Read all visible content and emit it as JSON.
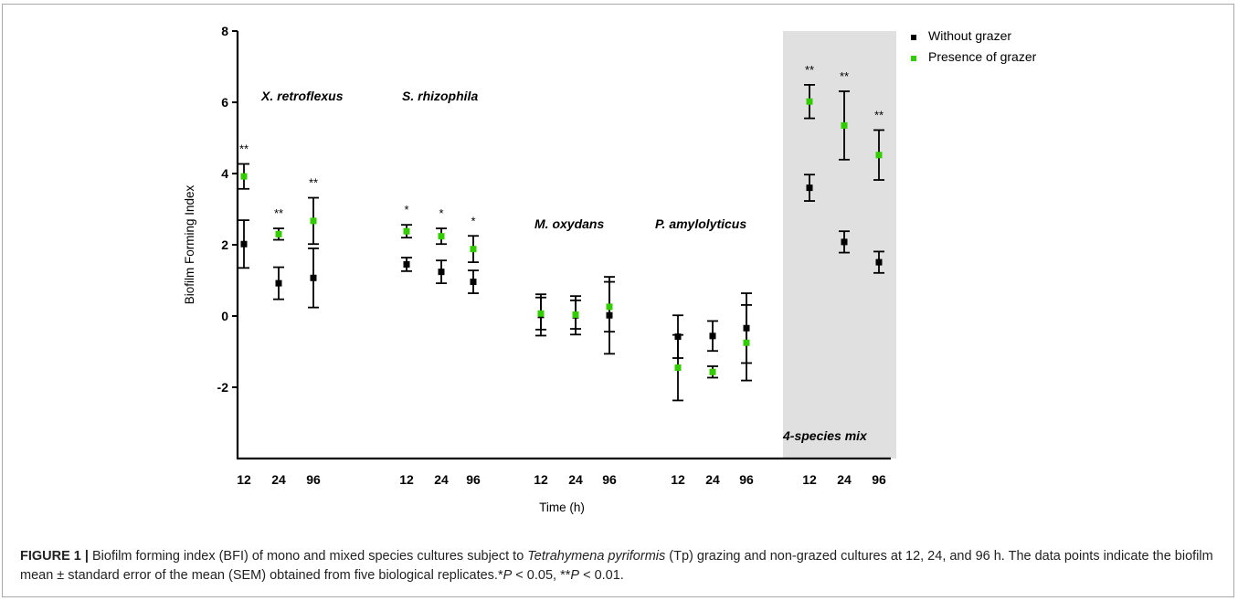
{
  "chart_data": {
    "type": "scatter",
    "title": "",
    "xlabel": "Time (h)",
    "ylabel": "Biofilm Forming Index",
    "ylim": [
      -4,
      8
    ],
    "yticks": [
      -2,
      0,
      2,
      4,
      6,
      8
    ],
    "grid": false,
    "legend_position": "top-right",
    "series": [
      {
        "name": "Without grazer",
        "color": "#000000"
      },
      {
        "name": "Presence of grazer",
        "color": "#33cc00"
      }
    ],
    "shaded_group": "4-species mix",
    "groups": [
      {
        "label": "X. retroflexus",
        "times": [
          "12",
          "24",
          "96"
        ],
        "without_grazer": {
          "mean": [
            2.02,
            0.92,
            1.07
          ],
          "sem": [
            0.67,
            0.45,
            0.83
          ]
        },
        "presence_of_grazer": {
          "mean": [
            3.92,
            2.3,
            2.67
          ],
          "sem": [
            0.35,
            0.16,
            0.65
          ]
        },
        "significance": [
          "**",
          "**",
          "**"
        ]
      },
      {
        "label": "S. rhizophila",
        "times": [
          "12",
          "24",
          "96"
        ],
        "without_grazer": {
          "mean": [
            1.45,
            1.24,
            0.96
          ],
          "sem": [
            0.19,
            0.32,
            0.32
          ]
        },
        "presence_of_grazer": {
          "mean": [
            2.38,
            2.24,
            1.88
          ],
          "sem": [
            0.18,
            0.22,
            0.37
          ]
        },
        "significance": [
          "*",
          "*",
          "*"
        ]
      },
      {
        "label": "M. oxydans",
        "times": [
          "12",
          "24",
          "96"
        ],
        "without_grazer": {
          "mean": [
            0.03,
            0.02,
            0.02
          ],
          "sem": [
            0.58,
            0.54,
            1.08
          ]
        },
        "presence_of_grazer": {
          "mean": [
            0.07,
            0.04,
            0.26
          ],
          "sem": [
            0.45,
            0.4,
            0.7
          ]
        },
        "significance": [
          "",
          "",
          ""
        ]
      },
      {
        "label": "P. amylolyticus",
        "times": [
          "12",
          "24",
          "96"
        ],
        "without_grazer": {
          "mean": [
            -0.58,
            -0.56,
            -0.34
          ],
          "sem": [
            0.6,
            0.42,
            0.98
          ]
        },
        "presence_of_grazer": {
          "mean": [
            -1.45,
            -1.57,
            -0.75
          ],
          "sem": [
            0.92,
            0.16,
            1.06
          ]
        },
        "significance": [
          "",
          "",
          ""
        ]
      },
      {
        "label": "4-species mix",
        "times": [
          "12",
          "24",
          "96"
        ],
        "without_grazer": {
          "mean": [
            3.6,
            2.08,
            1.51
          ],
          "sem": [
            0.37,
            0.3,
            0.3
          ]
        },
        "presence_of_grazer": {
          "mean": [
            6.02,
            5.35,
            4.52
          ],
          "sem": [
            0.47,
            0.96,
            0.7
          ]
        },
        "significance": [
          "**",
          "**",
          "**"
        ]
      }
    ]
  },
  "caption": {
    "label": "FIGURE 1 |",
    "t1": " Biofilm forming index (BFI) of mono and mixed species cultures subject to ",
    "t2": "Tetrahymena pyriformis",
    "t3": " (Tp) grazing and non-grazed cultures at 12, 24, and 96 h. The data points indicate the biofilm mean ± standard error of the mean (SEM) obtained from five biological replicates.*",
    "t4": "P",
    "t5": " < 0.05, **",
    "t6": "P",
    "t7": " < 0.01."
  }
}
